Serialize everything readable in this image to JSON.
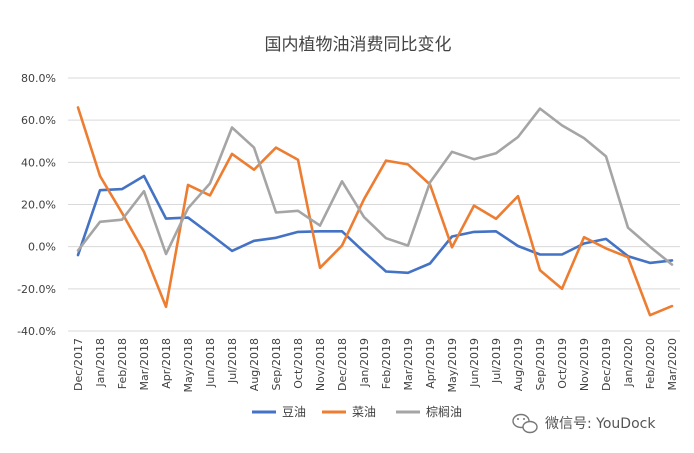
{
  "chart_data": {
    "type": "line",
    "title": "国内植物油消费同比变化",
    "categories": [
      "Dec/2017",
      "Jan/2018",
      "Feb/2018",
      "Mar/2018",
      "Apr/2018",
      "May/2018",
      "Jun/2018",
      "Jul/2018",
      "Aug/2018",
      "Sep/2018",
      "Oct/2018",
      "Nov/2018",
      "Dec/2018",
      "Jan/2019",
      "Feb/2019",
      "Mar/2019",
      "Apr/2019",
      "May/2019",
      "Jun/2019",
      "Jul/2019",
      "Aug/2019",
      "Sep/2019",
      "Oct/2019",
      "Nov/2019",
      "Dec/2019",
      "Jan/2020",
      "Feb/2020",
      "Mar/2020"
    ],
    "series": [
      {
        "name": "豆油",
        "color": "#4472C4",
        "values": [
          -4.0,
          26.8,
          27.3,
          33.5,
          13.3,
          13.8,
          6.0,
          -2.0,
          2.8,
          4.2,
          7.0,
          7.3,
          7.3,
          -2.5,
          -11.8,
          -12.4,
          -8.0,
          4.8,
          7.0,
          7.3,
          0.3,
          -3.7,
          -3.7,
          1.5,
          3.7,
          -4.5,
          -7.7,
          -6.5
        ]
      },
      {
        "name": "菜油",
        "color": "#ED7D31",
        "values": [
          66.0,
          33.5,
          16.0,
          -2.5,
          -28.5,
          29.3,
          24.3,
          44.0,
          36.5,
          47.0,
          41.2,
          -10.0,
          0.5,
          22.5,
          40.8,
          39.0,
          29.5,
          -0.3,
          19.5,
          13.2,
          24.0,
          -11.2,
          -20.0,
          4.5,
          -0.8,
          -5.0,
          -32.5,
          -28.2
        ]
      },
      {
        "name": "棕榈油",
        "color": "#A5A5A5",
        "values": [
          -1.8,
          11.8,
          12.8,
          26.3,
          -3.5,
          18.2,
          30.0,
          56.5,
          47.0,
          16.2,
          17.0,
          10.0,
          31.0,
          14.0,
          4.0,
          0.5,
          30.5,
          45.0,
          41.5,
          44.3,
          52.0,
          65.5,
          57.5,
          51.5,
          42.8,
          9.0,
          0.0,
          -8.5
        ]
      }
    ],
    "ylim": [
      -40,
      80
    ],
    "y_ticks": [
      "80.0%",
      "60.0%",
      "40.0%",
      "20.0%",
      "0.0%",
      "-20.0%",
      "-40.0%"
    ],
    "xlabel": "",
    "ylabel": "",
    "grid": true,
    "legend_position": "bottom"
  },
  "watermark": {
    "text": "微信号: YouDock",
    "icon": "wechat-icon"
  }
}
